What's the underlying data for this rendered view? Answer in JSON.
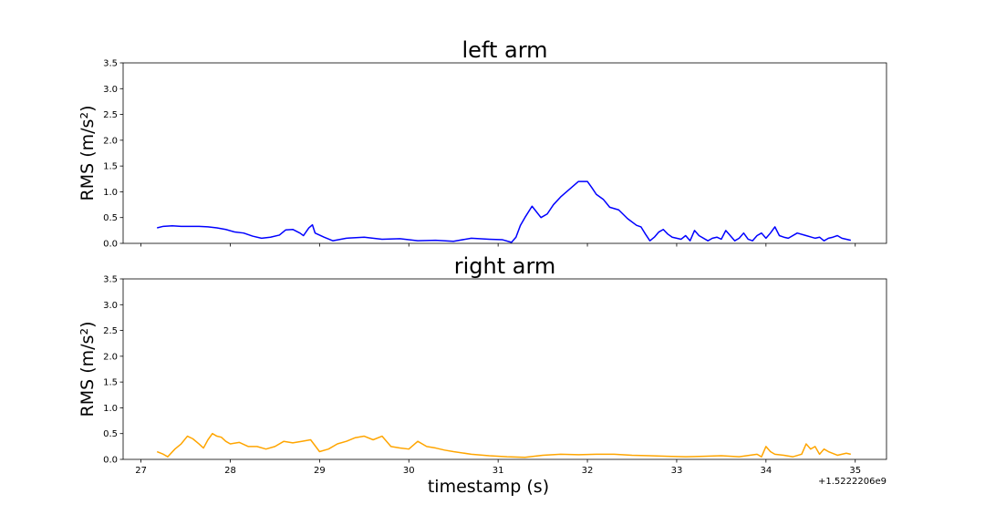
{
  "chart_data": [
    {
      "type": "line",
      "title": "left arm",
      "ylabel": "RMS (m/s²)",
      "xlabel": "",
      "ylim": [
        0,
        3.5
      ],
      "xlim": [
        26.8,
        35.35
      ],
      "yticks": [
        "0.0",
        "0.5",
        "1.0",
        "1.5",
        "2.0",
        "2.5",
        "3.0",
        "3.5"
      ],
      "xtick_values": [
        27,
        28,
        29,
        30,
        31,
        32,
        33,
        34,
        35
      ],
      "xtick_labels_visible": false,
      "color": "#0000ff",
      "series": [
        {
          "x": [
            27.18,
            27.25,
            27.35,
            27.45,
            27.55,
            27.65,
            27.75,
            27.85,
            27.95,
            28.05,
            28.15,
            28.25,
            28.35,
            28.45,
            28.55,
            28.62,
            28.7,
            28.78,
            28.82,
            28.88,
            28.92,
            28.95,
            29.05,
            29.15,
            29.3,
            29.5,
            29.7,
            29.9,
            30.1,
            30.3,
            30.5,
            30.7,
            30.9,
            31.05,
            31.15,
            31.2,
            31.25,
            31.3,
            31.38,
            31.48,
            31.55,
            31.62,
            31.7,
            31.8,
            31.9,
            32.0,
            32.05,
            32.1,
            32.18,
            32.25,
            32.35,
            32.45,
            32.55,
            32.6,
            32.65,
            32.7,
            32.75,
            32.8,
            32.85,
            32.9,
            32.95,
            33.0,
            33.05,
            33.1,
            33.15,
            33.2,
            33.25,
            33.35,
            33.4,
            33.45,
            33.5,
            33.55,
            33.6,
            33.65,
            33.7,
            33.75,
            33.8,
            33.85,
            33.9,
            33.95,
            34.0,
            34.05,
            34.1,
            34.15,
            34.2,
            34.25,
            34.35,
            34.45,
            34.55,
            34.6,
            34.65,
            34.7,
            34.75,
            34.8,
            34.85,
            34.95
          ],
          "y": [
            0.3,
            0.33,
            0.34,
            0.33,
            0.33,
            0.33,
            0.32,
            0.3,
            0.27,
            0.22,
            0.2,
            0.14,
            0.1,
            0.12,
            0.16,
            0.26,
            0.27,
            0.2,
            0.15,
            0.3,
            0.36,
            0.2,
            0.12,
            0.05,
            0.1,
            0.12,
            0.08,
            0.09,
            0.05,
            0.06,
            0.04,
            0.1,
            0.08,
            0.07,
            0.02,
            0.12,
            0.35,
            0.5,
            0.72,
            0.5,
            0.57,
            0.75,
            0.9,
            1.05,
            1.2,
            1.2,
            1.08,
            0.95,
            0.85,
            0.7,
            0.65,
            0.48,
            0.35,
            0.32,
            0.18,
            0.05,
            0.12,
            0.22,
            0.27,
            0.18,
            0.12,
            0.1,
            0.08,
            0.15,
            0.05,
            0.25,
            0.15,
            0.05,
            0.1,
            0.12,
            0.08,
            0.25,
            0.15,
            0.05,
            0.1,
            0.2,
            0.08,
            0.05,
            0.15,
            0.2,
            0.1,
            0.2,
            0.32,
            0.15,
            0.12,
            0.1,
            0.2,
            0.15,
            0.1,
            0.12,
            0.05,
            0.1,
            0.12,
            0.15,
            0.1,
            0.06
          ]
        }
      ]
    },
    {
      "type": "line",
      "title": "right arm",
      "ylabel": "RMS (m/s²)",
      "xlabel": "timestamp (s)",
      "ylim": [
        0,
        3.5
      ],
      "xlim": [
        26.8,
        35.35
      ],
      "yticks": [
        "0.0",
        "0.5",
        "1.0",
        "1.5",
        "2.0",
        "2.5",
        "3.0",
        "3.5"
      ],
      "xticks": [
        "27",
        "28",
        "29",
        "30",
        "31",
        "32",
        "33",
        "34",
        "35"
      ],
      "xtick_values": [
        27,
        28,
        29,
        30,
        31,
        32,
        33,
        34,
        35
      ],
      "x_offset_label": "+1.5222206e9",
      "color": "#ffa500",
      "series": [
        {
          "x": [
            27.18,
            27.25,
            27.3,
            27.38,
            27.45,
            27.52,
            27.58,
            27.65,
            27.7,
            27.75,
            27.8,
            27.85,
            27.9,
            27.95,
            28.0,
            28.1,
            28.2,
            28.3,
            28.4,
            28.5,
            28.6,
            28.7,
            28.8,
            28.9,
            29.0,
            29.1,
            29.2,
            29.3,
            29.4,
            29.5,
            29.6,
            29.7,
            29.8,
            29.9,
            30.0,
            30.1,
            30.2,
            30.3,
            30.4,
            30.5,
            30.7,
            30.9,
            31.1,
            31.3,
            31.5,
            31.7,
            31.9,
            32.1,
            32.3,
            32.5,
            32.7,
            32.9,
            33.1,
            33.3,
            33.5,
            33.7,
            33.9,
            33.95,
            34.0,
            34.05,
            34.1,
            34.2,
            34.3,
            34.4,
            34.45,
            34.5,
            34.55,
            34.6,
            34.65,
            34.7,
            34.8,
            34.9,
            34.95
          ],
          "y": [
            0.15,
            0.1,
            0.05,
            0.2,
            0.3,
            0.45,
            0.4,
            0.3,
            0.22,
            0.38,
            0.5,
            0.45,
            0.43,
            0.35,
            0.3,
            0.33,
            0.25,
            0.25,
            0.2,
            0.25,
            0.35,
            0.32,
            0.35,
            0.38,
            0.15,
            0.2,
            0.3,
            0.35,
            0.42,
            0.45,
            0.38,
            0.45,
            0.25,
            0.22,
            0.2,
            0.35,
            0.25,
            0.22,
            0.18,
            0.15,
            0.1,
            0.07,
            0.05,
            0.04,
            0.08,
            0.1,
            0.09,
            0.1,
            0.1,
            0.08,
            0.07,
            0.06,
            0.05,
            0.06,
            0.07,
            0.05,
            0.1,
            0.05,
            0.25,
            0.15,
            0.1,
            0.08,
            0.05,
            0.1,
            0.3,
            0.2,
            0.25,
            0.1,
            0.2,
            0.15,
            0.08,
            0.12,
            0.1
          ]
        }
      ]
    }
  ]
}
